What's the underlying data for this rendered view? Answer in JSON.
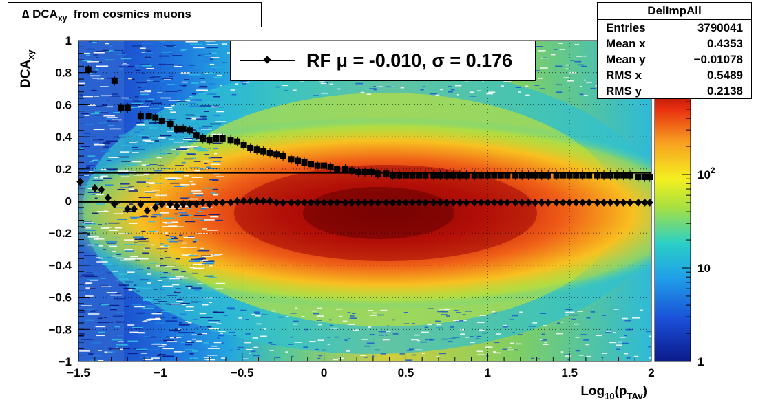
{
  "title": {
    "prefix": "∆ DCA",
    "subscript": "xy",
    "suffix": "from cosmics muons"
  },
  "stats": {
    "name": "DelImpAll",
    "rows": [
      {
        "label": "Entries",
        "value": "3790041"
      },
      {
        "label": "Mean x",
        "value": "0.4353"
      },
      {
        "label": "Mean y",
        "value": "−0.01078"
      },
      {
        "label": "RMS x",
        "value": "0.5489"
      },
      {
        "label": "RMS y",
        "value": "0.2138"
      }
    ]
  },
  "legend": {
    "text": "RF μ = -0.010, σ =   0.176"
  },
  "chart_data": {
    "type": "heatmap",
    "xlabel": "Log10(pTAv)",
    "ylabel": "DCAxy",
    "xlim": [
      -1.5,
      2
    ],
    "ylim": [
      -1,
      1
    ],
    "x_ticks": [
      "−1.5",
      "−1",
      "−0.5",
      "0",
      "0.5",
      "1",
      "1.5",
      "2"
    ],
    "y_ticks": [
      "1",
      "0.8",
      "0.6",
      "0.4",
      "0.2",
      "0",
      "−0.2",
      "−0.4",
      "−0.6",
      "−0.8",
      "−1"
    ],
    "z_scale": "log",
    "z_range": [
      1,
      1000
    ],
    "z_ticks": [
      "1",
      "10",
      "10²"
    ],
    "grid": true,
    "sigma_line": 0.176,
    "series": [
      {
        "name": "sigma",
        "marker": "square",
        "x": [
          -1.44,
          -1.28,
          -1.24,
          -1.2,
          -1.12,
          -1.07,
          -1.03,
          -0.99,
          -0.94,
          -0.9,
          -0.86,
          -0.82,
          -0.78,
          -0.74,
          -0.7,
          -0.66,
          -0.62,
          -0.57,
          -0.53,
          -0.49,
          -0.45,
          -0.41,
          -0.37,
          -0.33,
          -0.29,
          -0.25,
          -0.2,
          -0.16,
          -0.12,
          -0.08,
          -0.04,
          0.0,
          0.04,
          0.08,
          0.13,
          0.17,
          0.21,
          0.25,
          0.29,
          0.33,
          0.38,
          0.42,
          0.46,
          0.5,
          0.54,
          0.58,
          0.62,
          0.67,
          0.71,
          0.75,
          0.79,
          0.83,
          0.87,
          0.92,
          0.96,
          1.0,
          1.04,
          1.08,
          1.12,
          1.17,
          1.21,
          1.25,
          1.29,
          1.33,
          1.37,
          1.42,
          1.46,
          1.5,
          1.54,
          1.58,
          1.62,
          1.67,
          1.71,
          1.75,
          1.79,
          1.83,
          1.87,
          1.92,
          1.96,
          1.99
        ],
        "y": [
          0.82,
          0.75,
          0.58,
          0.58,
          0.53,
          0.53,
          0.52,
          0.5,
          0.48,
          0.45,
          0.45,
          0.44,
          0.41,
          0.39,
          0.38,
          0.39,
          0.39,
          0.38,
          0.37,
          0.35,
          0.33,
          0.32,
          0.31,
          0.3,
          0.29,
          0.28,
          0.26,
          0.25,
          0.24,
          0.23,
          0.22,
          0.22,
          0.21,
          0.2,
          0.2,
          0.19,
          0.18,
          0.18,
          0.18,
          0.17,
          0.17,
          0.16,
          0.16,
          0.16,
          0.16,
          0.16,
          0.16,
          0.16,
          0.16,
          0.16,
          0.16,
          0.16,
          0.16,
          0.16,
          0.16,
          0.16,
          0.16,
          0.16,
          0.16,
          0.16,
          0.16,
          0.16,
          0.16,
          0.16,
          0.16,
          0.16,
          0.16,
          0.16,
          0.16,
          0.16,
          0.16,
          0.16,
          0.16,
          0.16,
          0.16,
          0.16,
          0.16,
          0.15,
          0.15,
          0.15
        ]
      },
      {
        "name": "mean",
        "marker": "diamond",
        "x": [
          -1.49,
          -1.4,
          -1.36,
          -1.32,
          -1.28,
          -1.2,
          -1.16,
          -1.12,
          -1.08,
          -1.03,
          -0.99,
          -0.94,
          -0.9,
          -0.86,
          -0.82,
          -0.78,
          -0.74,
          -0.7,
          -0.66,
          -0.62,
          -0.57,
          -0.53,
          -0.49,
          -0.45,
          -0.41,
          -0.37,
          -0.33,
          -0.29,
          -0.25,
          -0.2,
          -0.16,
          -0.12,
          -0.08,
          -0.04,
          0.0,
          0.04,
          0.08,
          0.13,
          0.17,
          0.21,
          0.25,
          0.29,
          0.33,
          0.38,
          0.42,
          0.46,
          0.5,
          0.54,
          0.58,
          0.62,
          0.67,
          0.71,
          0.75,
          0.79,
          0.83,
          0.87,
          0.92,
          0.96,
          1.0,
          1.04,
          1.08,
          1.12,
          1.17,
          1.21,
          1.25,
          1.29,
          1.33,
          1.37,
          1.42,
          1.46,
          1.5,
          1.54,
          1.58,
          1.62,
          1.67,
          1.71,
          1.75,
          1.79,
          1.83,
          1.87,
          1.92,
          1.96,
          1.99
        ],
        "y": [
          0.12,
          0.08,
          0.07,
          0.02,
          -0.02,
          -0.05,
          -0.05,
          -0.02,
          -0.06,
          -0.04,
          -0.02,
          -0.02,
          -0.03,
          -0.02,
          -0.02,
          -0.02,
          -0.01,
          -0.02,
          -0.01,
          -0.01,
          -0.01,
          0.0,
          0.0,
          0.0,
          0.0,
          0.0,
          0.0,
          -0.01,
          -0.01,
          -0.01,
          -0.01,
          -0.01,
          -0.01,
          -0.01,
          -0.01,
          -0.01,
          -0.01,
          -0.01,
          -0.01,
          -0.01,
          -0.01,
          -0.01,
          -0.01,
          -0.01,
          -0.01,
          -0.01,
          -0.01,
          -0.01,
          -0.01,
          -0.01,
          -0.01,
          -0.01,
          -0.01,
          -0.01,
          -0.01,
          -0.01,
          -0.01,
          -0.01,
          -0.01,
          -0.01,
          -0.01,
          -0.01,
          -0.01,
          -0.01,
          -0.01,
          -0.01,
          -0.01,
          -0.01,
          -0.01,
          -0.01,
          -0.01,
          -0.01,
          -0.01,
          -0.01,
          -0.01,
          -0.01,
          -0.01,
          -0.01,
          -0.01,
          -0.01,
          -0.01,
          -0.01,
          -0.01
        ]
      }
    ]
  }
}
